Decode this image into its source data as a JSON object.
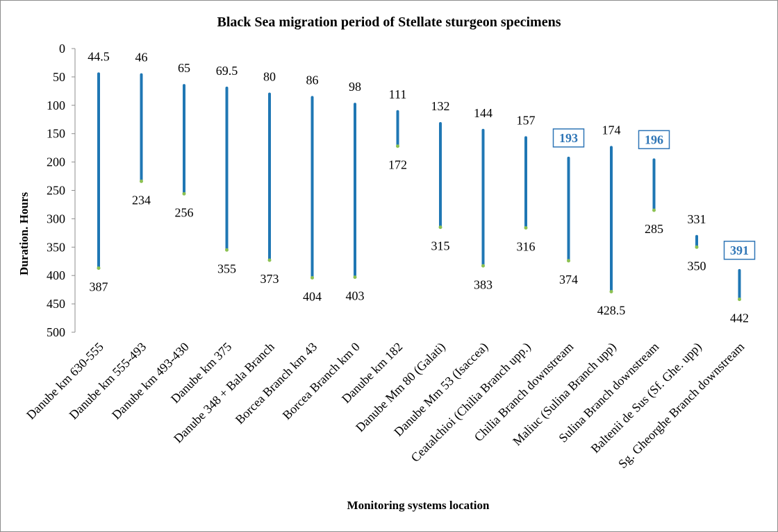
{
  "chart_data": {
    "type": "range",
    "title": "Black Sea migration period of Stellate sturgeon specimens",
    "xlabel": "Monitoring systems location",
    "ylabel": "Duration. Hours",
    "ylim": [
      0,
      500
    ],
    "y_inverted": true,
    "y_ticks": [
      "0",
      "50",
      "100",
      "150",
      "200",
      "250",
      "300",
      "350",
      "400",
      "450",
      "500"
    ],
    "grid": false,
    "legend": "none",
    "colors": {
      "bar": "#1f77b4",
      "end_marker": "#8cc152",
      "highlight_text": "#2e75b6",
      "text": "#000000"
    },
    "categories": [
      "Danube km 630-555",
      "Danube km 555-493",
      "Danube km 493-430",
      "Danube km 375",
      "Danube 348 + Bala Branch",
      "Borcea Branch km 43",
      "Borcea Branch km 0",
      "Danube km 182",
      "Danube Mm 80 (Galati)",
      "Danube Mm 53 (Isaccea)",
      "Ceatalchioi (Chilia Branch upp.)",
      "Chilia Branch downstream",
      "Maliuc (Sulina Branch upp)",
      "Sulina Branch downstream",
      "Baltenii de Sus (Sf. Ghe. upp)",
      "Sg. Gheorghe Branch downstream"
    ],
    "start": [
      44.5,
      46,
      65,
      69.5,
      80,
      86,
      98,
      111,
      132,
      144,
      157,
      193,
      174,
      196,
      331,
      391
    ],
    "end": [
      387,
      234,
      256,
      355,
      373,
      404,
      403,
      172,
      315,
      383,
      316,
      374,
      428.5,
      285,
      350,
      442
    ],
    "start_labels": [
      "44.5",
      "46",
      "65",
      "69.5",
      "80",
      "86",
      "98",
      "111",
      "132",
      "144",
      "157",
      "193",
      "174",
      "196",
      "331",
      "391"
    ],
    "end_labels": [
      "387",
      "234",
      "256",
      "355",
      "373",
      "404",
      "403",
      "172",
      "315",
      "383",
      "316",
      "374",
      "428.5",
      "285",
      "350",
      "442"
    ],
    "highlighted_start_labels": [
      11,
      13,
      15
    ]
  }
}
